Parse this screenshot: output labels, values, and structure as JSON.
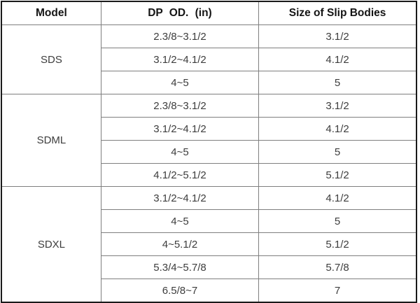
{
  "table": {
    "headers": [
      "Model",
      "DP OD. (in)",
      "Size of Slip Bodies"
    ],
    "groups": [
      {
        "model": "SDS",
        "rows": [
          [
            "2.3/8~3.1/2",
            "3.1/2"
          ],
          [
            "3.1/2~4.1/2",
            "4.1/2"
          ],
          [
            "4~5",
            "5"
          ]
        ]
      },
      {
        "model": "SDML",
        "rows": [
          [
            "2.3/8~3.1/2",
            "3.1/2"
          ],
          [
            "3.1/2~4.1/2",
            "4.1/2"
          ],
          [
            "4~5",
            "5"
          ],
          [
            "4.1/2~5.1/2",
            "5.1/2"
          ]
        ]
      },
      {
        "model": "SDXL",
        "rows": [
          [
            "3.1/2~4.1/2",
            "4.1/2"
          ],
          [
            "4~5",
            "5"
          ],
          [
            "4~5.1/2",
            "5.1/2"
          ],
          [
            "5.3/4~5.7/8",
            "5.7/8"
          ],
          [
            "6.5/8~7",
            "7"
          ]
        ]
      }
    ],
    "colors": {
      "outer_border": "#1a1a1a",
      "inner_border": "#7f7f7f",
      "header_text": "#141414",
      "body_text": "#3d3d3d"
    }
  }
}
